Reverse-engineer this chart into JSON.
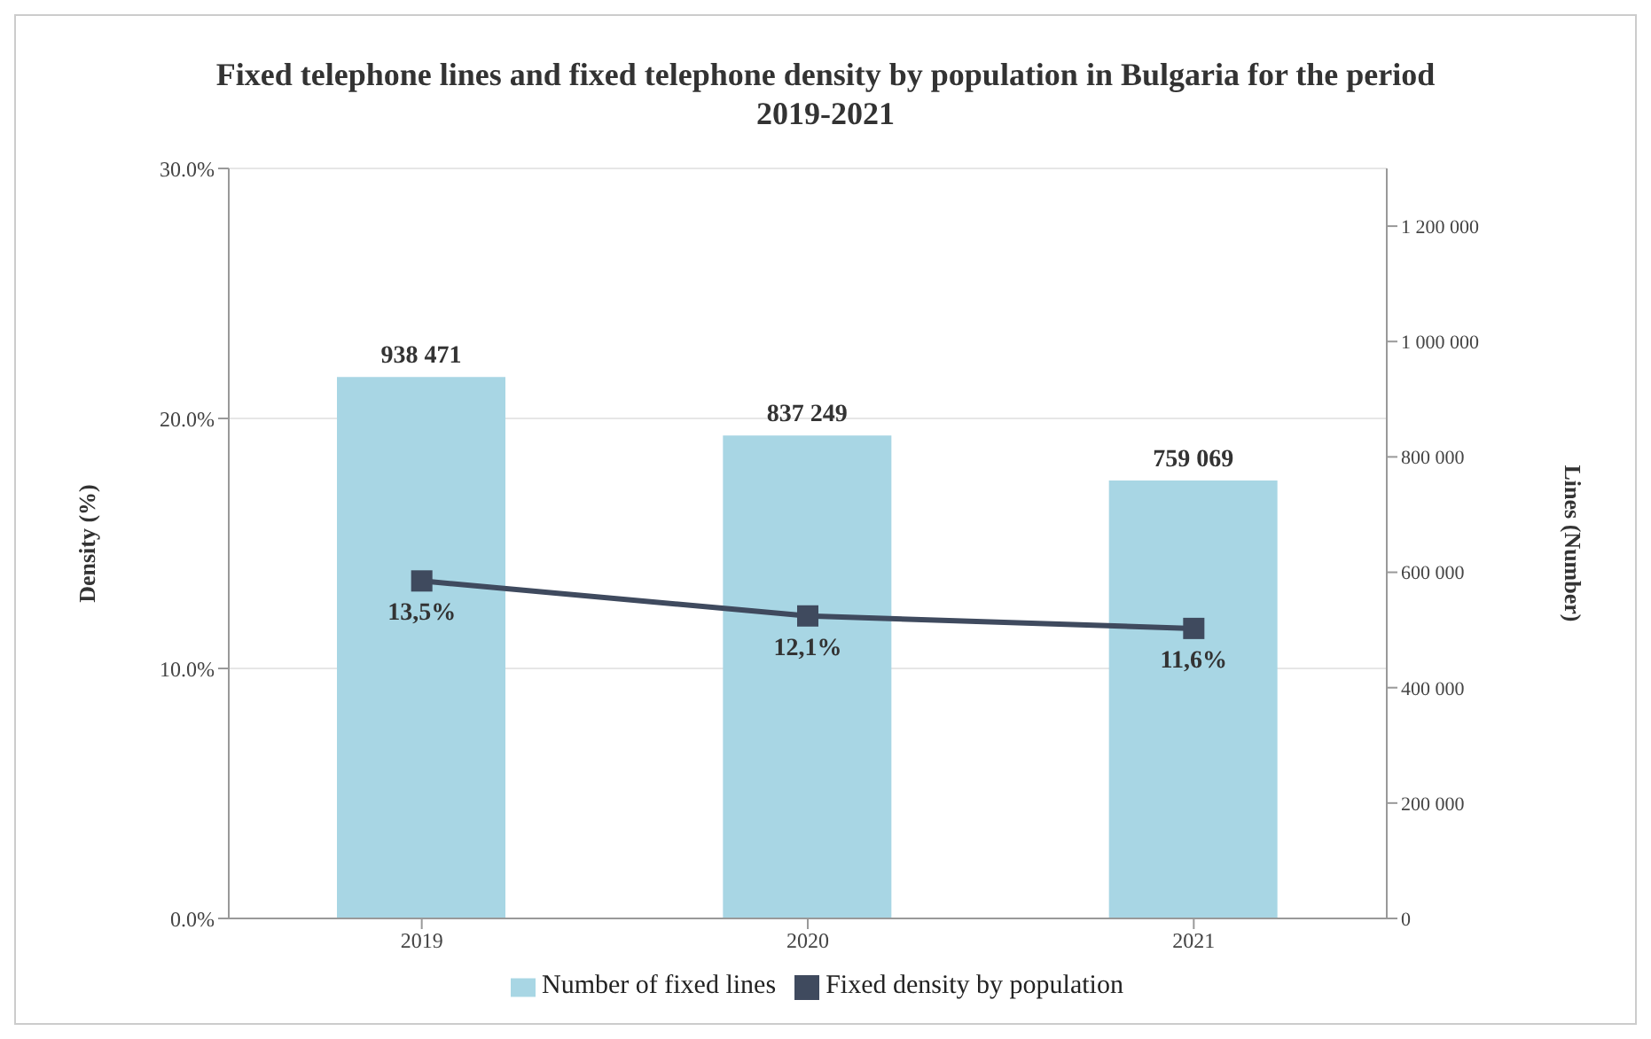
{
  "chart_data": {
    "type": "bar",
    "title": "Fixed telephone lines and fixed telephone density by population in Bulgaria for the period 2019-2021",
    "ylabel": "Density (%)",
    "y2label": "Lines (Number)",
    "categories": [
      "2019",
      "2020",
      "2021"
    ],
    "series": [
      {
        "name": "Number of fixed lines",
        "axis": "y2",
        "color": "#a8d6e4",
        "values": [
          938471,
          837249,
          759069
        ],
        "value_labels": [
          "938 471",
          "837 249",
          "759 069"
        ]
      },
      {
        "name": "Fixed density by population",
        "type": "line",
        "axis": "y",
        "color": "#3f4a5e",
        "marker": "square",
        "values": [
          13.5,
          12.1,
          11.6
        ],
        "value_labels": [
          "13,5%",
          "12,1%",
          "11,6%"
        ]
      }
    ],
    "ylim": [
      0,
      30
    ],
    "yticks": [
      {
        "value": 0,
        "label": "0.0%"
      },
      {
        "value": 10,
        "label": "10.0%"
      },
      {
        "value": 20,
        "label": "20.0%"
      },
      {
        "value": 30,
        "label": "30.0%"
      }
    ],
    "y2lim": [
      0,
      1300000
    ],
    "y2ticks": [
      {
        "value": 0,
        "label": "0"
      },
      {
        "value": 200000,
        "label": "200 000"
      },
      {
        "value": 400000,
        "label": "400 000"
      },
      {
        "value": 600000,
        "label": "600 000"
      },
      {
        "value": 800000,
        "label": "800 000"
      },
      {
        "value": 1000000,
        "label": "1 000 000"
      },
      {
        "value": 1200000,
        "label": "1 200 000"
      }
    ],
    "grid": "y",
    "legend": "bottom"
  }
}
